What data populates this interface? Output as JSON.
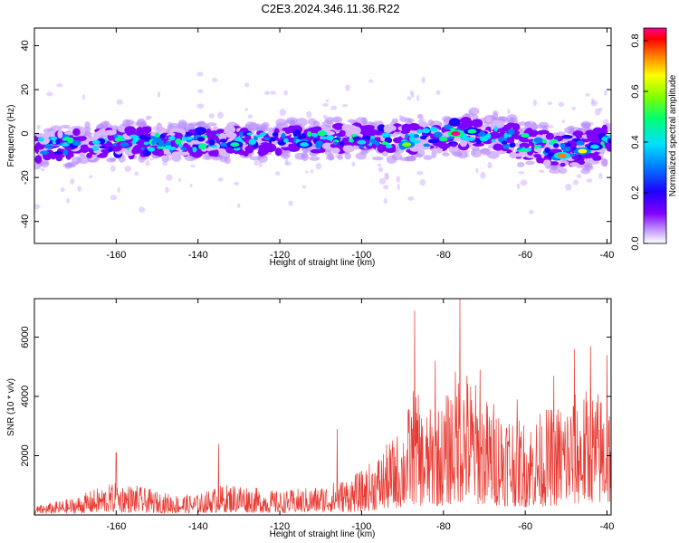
{
  "title": "C2E3.2024.346.11.36.R22",
  "colors": {
    "snr_line": "#e83a32",
    "spectrogram_band": "#5a00ff",
    "axes": "#000000"
  },
  "chart_data": [
    {
      "type": "heatmap",
      "xlabel": "Height of straight line (km)",
      "ylabel": "Frequency (Hz)",
      "xlim": [
        -180,
        -39
      ],
      "ylim": [
        -50,
        48
      ],
      "xticks": [
        -160,
        -140,
        -120,
        -100,
        -80,
        -60,
        -40
      ],
      "yticks": [
        -40,
        -20,
        0,
        20,
        40
      ],
      "colorbar": {
        "label": "Normalized spectral amplitude",
        "range": [
          0,
          0.85
        ],
        "ticks": [
          0.0,
          0.2,
          0.4,
          0.6,
          0.8
        ],
        "colormap": [
          "#ffffff",
          "#d9b8ff",
          "#8000ff",
          "#2000ff",
          "#0080ff",
          "#00e0ff",
          "#00ff80",
          "#80ff00",
          "#ffff00",
          "#ff8000",
          "#ff0000",
          "#ff0080"
        ]
      },
      "band": {
        "description_points_x": [
          -180,
          -160,
          -140,
          -120,
          -100,
          -90,
          -80,
          -70,
          -60,
          -50,
          -40
        ],
        "center_freq": [
          -6,
          -4,
          -4,
          -3,
          -2,
          -3,
          -1,
          1,
          -5,
          -8,
          -4
        ],
        "width_hz": [
          12,
          12,
          11,
          11,
          11,
          12,
          13,
          12,
          14,
          14,
          14
        ],
        "peaks": [
          {
            "x": -77,
            "y": 0,
            "amplitude": 0.82
          },
          {
            "x": -51,
            "y": -10,
            "amplitude": 0.7
          },
          {
            "x": -46,
            "y": -8,
            "amplitude": 0.6
          },
          {
            "x": -89,
            "y": -5,
            "amplitude": 0.55
          },
          {
            "x": -131,
            "y": -5,
            "amplitude": 0.45
          },
          {
            "x": -114,
            "y": -5,
            "amplitude": 0.4
          },
          {
            "x": -73,
            "y": 1,
            "amplitude": 0.45
          },
          {
            "x": -43,
            "y": -6,
            "amplitude": 0.4
          },
          {
            "x": -158,
            "y": -5,
            "amplitude": 0.3
          },
          {
            "x": -100,
            "y": -4,
            "amplitude": 0.35
          }
        ]
      }
    },
    {
      "type": "line",
      "xlabel": "Height of straight line (km)",
      "ylabel": "SNR (10 * v/v)",
      "xlim": [
        -180,
        -39
      ],
      "ylim": [
        0,
        7300
      ],
      "xticks": [
        -160,
        -140,
        -120,
        -100,
        -80,
        -60,
        -40
      ],
      "yticks": [
        2000,
        4000,
        6000
      ],
      "series": [
        {
          "envelope_x": [
            -180,
            -170,
            -165,
            -160,
            -155,
            -150,
            -145,
            -140,
            -135,
            -130,
            -125,
            -120,
            -115,
            -110,
            -105,
            -100,
            -95,
            -90,
            -87,
            -85,
            -80,
            -77,
            -75,
            -70,
            -65,
            -60,
            -55,
            -50,
            -45,
            -40
          ],
          "envelope_y": [
            300,
            600,
            900,
            1100,
            1000,
            800,
            700,
            700,
            1000,
            1100,
            900,
            800,
            900,
            1000,
            1200,
            1500,
            2200,
            3000,
            4500,
            3500,
            3800,
            5000,
            5200,
            4000,
            3800,
            3200,
            3600,
            4000,
            4300,
            4200
          ],
          "spikes": [
            {
              "x": -160,
              "y": 2100
            },
            {
              "x": -135,
              "y": 2400
            },
            {
              "x": -106,
              "y": 2900
            },
            {
              "x": -87,
              "y": 6900
            },
            {
              "x": -82,
              "y": 5200
            },
            {
              "x": -76,
              "y": 7300
            },
            {
              "x": -71,
              "y": 4900
            },
            {
              "x": -62,
              "y": 3900
            },
            {
              "x": -53,
              "y": 4700
            },
            {
              "x": -48,
              "y": 5600
            },
            {
              "x": -44,
              "y": 5700
            },
            {
              "x": -40,
              "y": 5400
            }
          ]
        }
      ]
    }
  ]
}
